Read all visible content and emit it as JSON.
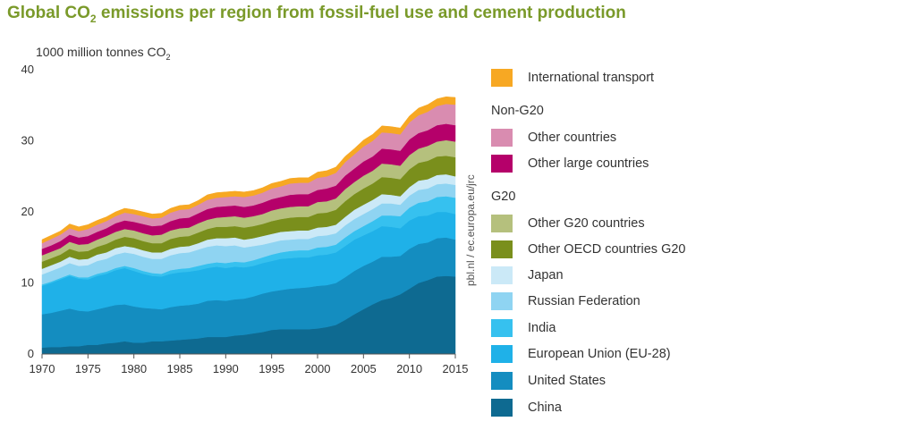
{
  "chart_data": {
    "type": "area",
    "stacked": true,
    "title_prefix": "Global CO",
    "title_sub": "2",
    "title_suffix": " emissions per region from fossil-fuel use and cement production",
    "ylabel_prefix": "1000 million tonnes CO",
    "ylabel_sub": "2",
    "source": "pbl.nl / ec.europa.eu/jrc",
    "xlim": [
      1970,
      2015
    ],
    "ylim": [
      0,
      40
    ],
    "x_ticks": [
      1970,
      1975,
      1980,
      1985,
      1990,
      1995,
      2000,
      2005,
      2010,
      2015
    ],
    "y_ticks": [
      0,
      10,
      20,
      30,
      40
    ],
    "x": [
      1970,
      1971,
      1972,
      1973,
      1974,
      1975,
      1976,
      1977,
      1978,
      1979,
      1980,
      1981,
      1982,
      1983,
      1984,
      1985,
      1986,
      1987,
      1988,
      1989,
      1990,
      1991,
      1992,
      1993,
      1994,
      1995,
      1996,
      1997,
      1998,
      1999,
      2000,
      2001,
      2002,
      2003,
      2004,
      2005,
      2006,
      2007,
      2008,
      2009,
      2010,
      2011,
      2012,
      2013,
      2014,
      2015
    ],
    "series": [
      {
        "name": "China",
        "color": "#0e6a91",
        "values": [
          0.9,
          1.0,
          1.0,
          1.1,
          1.1,
          1.3,
          1.3,
          1.5,
          1.6,
          1.8,
          1.6,
          1.6,
          1.8,
          1.8,
          1.9,
          2.0,
          2.1,
          2.2,
          2.4,
          2.4,
          2.4,
          2.6,
          2.7,
          2.9,
          3.1,
          3.4,
          3.5,
          3.5,
          3.5,
          3.5,
          3.6,
          3.8,
          4.1,
          4.8,
          5.6,
          6.3,
          7.0,
          7.6,
          7.9,
          8.4,
          9.2,
          10.0,
          10.4,
          10.9,
          11.0,
          10.9
        ]
      },
      {
        "name": "United States",
        "color": "#148dc0",
        "values": [
          4.7,
          4.8,
          5.1,
          5.3,
          5.0,
          4.7,
          5.0,
          5.1,
          5.3,
          5.2,
          5.1,
          4.9,
          4.6,
          4.5,
          4.7,
          4.8,
          4.8,
          4.9,
          5.1,
          5.2,
          5.1,
          5.1,
          5.1,
          5.2,
          5.4,
          5.4,
          5.5,
          5.7,
          5.8,
          5.9,
          6.0,
          5.9,
          5.9,
          6.0,
          6.1,
          6.1,
          6.0,
          6.1,
          5.8,
          5.4,
          5.6,
          5.5,
          5.3,
          5.4,
          5.4,
          5.2
        ]
      },
      {
        "name": "European Union (EU-28)",
        "color": "#1fb1e8",
        "values": [
          4.0,
          4.2,
          4.4,
          4.6,
          4.5,
          4.5,
          4.7,
          4.7,
          4.9,
          5.1,
          5.0,
          4.8,
          4.6,
          4.6,
          4.7,
          4.7,
          4.7,
          4.7,
          4.6,
          4.7,
          4.6,
          4.6,
          4.4,
          4.3,
          4.3,
          4.3,
          4.4,
          4.3,
          4.3,
          4.2,
          4.3,
          4.3,
          4.3,
          4.4,
          4.4,
          4.3,
          4.3,
          4.3,
          4.2,
          3.9,
          4.0,
          3.9,
          3.8,
          3.7,
          3.6,
          3.6
        ]
      },
      {
        "name": "India",
        "color": "#36c1ef",
        "values": [
          0.2,
          0.2,
          0.2,
          0.2,
          0.2,
          0.3,
          0.3,
          0.3,
          0.3,
          0.3,
          0.4,
          0.4,
          0.4,
          0.4,
          0.5,
          0.5,
          0.5,
          0.6,
          0.6,
          0.6,
          0.7,
          0.7,
          0.7,
          0.8,
          0.8,
          0.9,
          0.9,
          1.0,
          1.0,
          1.0,
          1.1,
          1.1,
          1.1,
          1.2,
          1.2,
          1.3,
          1.4,
          1.5,
          1.6,
          1.7,
          1.8,
          1.9,
          2.0,
          2.1,
          2.2,
          2.3
        ]
      },
      {
        "name": "Russian Federation",
        "color": "#8fd4f2",
        "values": [
          1.4,
          1.5,
          1.5,
          1.6,
          1.6,
          1.7,
          1.8,
          1.8,
          1.9,
          1.9,
          2.0,
          2.0,
          2.0,
          2.1,
          2.1,
          2.2,
          2.2,
          2.3,
          2.4,
          2.4,
          2.4,
          2.3,
          2.1,
          2.0,
          1.8,
          1.7,
          1.7,
          1.6,
          1.6,
          1.6,
          1.6,
          1.6,
          1.6,
          1.7,
          1.7,
          1.7,
          1.7,
          1.7,
          1.7,
          1.6,
          1.7,
          1.8,
          1.8,
          1.8,
          1.8,
          1.8
        ]
      },
      {
        "name": "Japan",
        "color": "#cbe9f7",
        "values": [
          0.8,
          0.8,
          0.8,
          0.9,
          0.9,
          0.9,
          0.9,
          0.9,
          0.9,
          0.9,
          0.9,
          0.9,
          0.9,
          0.9,
          0.9,
          0.9,
          0.9,
          0.9,
          1.0,
          1.0,
          1.1,
          1.1,
          1.1,
          1.1,
          1.2,
          1.2,
          1.2,
          1.2,
          1.2,
          1.2,
          1.2,
          1.2,
          1.2,
          1.2,
          1.3,
          1.3,
          1.3,
          1.3,
          1.2,
          1.2,
          1.2,
          1.3,
          1.3,
          1.3,
          1.3,
          1.2
        ]
      },
      {
        "name": "Other OECD countries G20",
        "color": "#7a8f1c",
        "values": [
          1.0,
          1.0,
          1.0,
          1.1,
          1.1,
          1.1,
          1.1,
          1.2,
          1.2,
          1.3,
          1.3,
          1.3,
          1.3,
          1.3,
          1.4,
          1.4,
          1.4,
          1.5,
          1.5,
          1.6,
          1.6,
          1.6,
          1.7,
          1.7,
          1.7,
          1.8,
          1.8,
          1.9,
          1.9,
          1.9,
          2.0,
          2.0,
          2.1,
          2.2,
          2.2,
          2.3,
          2.3,
          2.4,
          2.4,
          2.4,
          2.5,
          2.5,
          2.6,
          2.6,
          2.6,
          2.7
        ]
      },
      {
        "name": "Other G20 countries",
        "color": "#b5c07d",
        "values": [
          0.9,
          0.9,
          0.9,
          1.0,
          1.0,
          1.0,
          1.0,
          1.1,
          1.1,
          1.1,
          1.1,
          1.1,
          1.1,
          1.2,
          1.2,
          1.2,
          1.2,
          1.3,
          1.3,
          1.3,
          1.4,
          1.4,
          1.4,
          1.4,
          1.4,
          1.5,
          1.5,
          1.5,
          1.5,
          1.5,
          1.6,
          1.6,
          1.6,
          1.7,
          1.7,
          1.8,
          1.8,
          1.9,
          1.9,
          1.9,
          2.0,
          2.0,
          2.1,
          2.1,
          2.2,
          2.2
        ]
      },
      {
        "name": "Other large countries",
        "color": "#b5006a",
        "values": [
          0.9,
          0.9,
          1.0,
          1.0,
          1.0,
          1.1,
          1.1,
          1.1,
          1.2,
          1.2,
          1.2,
          1.3,
          1.3,
          1.3,
          1.3,
          1.4,
          1.4,
          1.4,
          1.5,
          1.5,
          1.5,
          1.5,
          1.5,
          1.5,
          1.6,
          1.6,
          1.6,
          1.7,
          1.7,
          1.7,
          1.7,
          1.8,
          1.8,
          1.9,
          1.9,
          2.0,
          2.0,
          2.1,
          2.1,
          2.1,
          2.2,
          2.2,
          2.2,
          2.3,
          2.3,
          2.3
        ]
      },
      {
        "name": "Other countries",
        "color": "#d98cb0",
        "values": [
          0.8,
          0.9,
          0.9,
          0.9,
          0.9,
          1.0,
          1.0,
          1.0,
          1.0,
          1.1,
          1.1,
          1.1,
          1.1,
          1.1,
          1.2,
          1.2,
          1.2,
          1.2,
          1.3,
          1.3,
          1.3,
          1.3,
          1.4,
          1.4,
          1.4,
          1.5,
          1.5,
          1.6,
          1.6,
          1.6,
          1.7,
          1.7,
          1.8,
          1.9,
          2.0,
          2.1,
          2.2,
          2.3,
          2.3,
          2.3,
          2.4,
          2.5,
          2.6,
          2.7,
          2.8,
          2.9
        ]
      },
      {
        "name": "International transport",
        "color": "#f7a823",
        "values": [
          0.5,
          0.5,
          0.5,
          0.6,
          0.6,
          0.6,
          0.6,
          0.6,
          0.6,
          0.6,
          0.6,
          0.6,
          0.6,
          0.6,
          0.6,
          0.6,
          0.6,
          0.6,
          0.7,
          0.7,
          0.7,
          0.7,
          0.7,
          0.7,
          0.7,
          0.7,
          0.7,
          0.7,
          0.7,
          0.7,
          0.8,
          0.8,
          0.8,
          0.8,
          0.8,
          0.9,
          0.9,
          0.9,
          0.9,
          0.9,
          0.9,
          1.0,
          1.0,
          1.0,
          1.0,
          1.0
        ]
      }
    ],
    "legend": {
      "transport_label": "International transport",
      "non_g20_heading": "Non-G20",
      "g20_heading": "G20"
    }
  }
}
